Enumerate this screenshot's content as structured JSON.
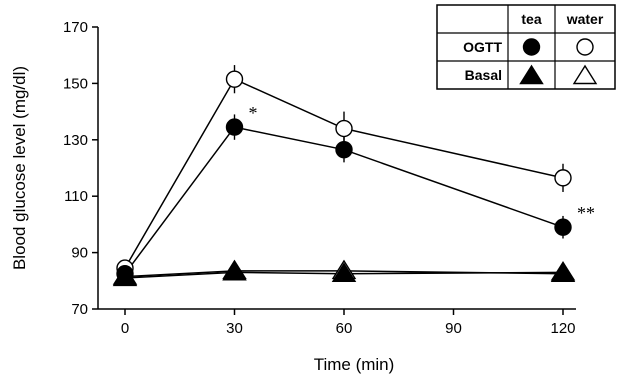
{
  "chart_data": {
    "type": "line",
    "title": "",
    "xlabel": "Time (min)",
    "ylabel": "Blood glucose level  (mg/dl)",
    "xlim": [
      0,
      120
    ],
    "ylim": [
      70,
      170
    ],
    "x_ticks": [
      0,
      30,
      60,
      90,
      120
    ],
    "y_ticks": [
      70,
      90,
      110,
      130,
      150,
      170
    ],
    "grid": false,
    "legend": {
      "placement": "top-right",
      "columns": [
        "tea",
        "water"
      ],
      "rows": [
        "OGTT",
        "Basal"
      ]
    },
    "series": [
      {
        "id": "ogtt_water",
        "x": [
          0,
          30,
          60,
          120
        ],
        "y": [
          84.5,
          151.5,
          134,
          116.5
        ],
        "err": [
          1.5,
          5,
          6,
          5
        ],
        "marker": "circle",
        "filled": false
      },
      {
        "id": "ogtt_tea",
        "x": [
          0,
          30,
          60,
          120
        ],
        "y": [
          82.5,
          134.5,
          126.5,
          99
        ],
        "err": [
          1.5,
          4.5,
          4.5,
          4
        ],
        "marker": "circle",
        "filled": true
      },
      {
        "id": "basal_water",
        "x": [
          0,
          30,
          60,
          120
        ],
        "y": [
          81.5,
          83.5,
          83.5,
          82.5
        ],
        "err": [
          0.5,
          0.5,
          0.5,
          0.5
        ],
        "marker": "triangle",
        "filled": false
      },
      {
        "id": "basal_tea",
        "x": [
          0,
          30,
          60,
          120
        ],
        "y": [
          81,
          83,
          82.5,
          83
        ],
        "err": [
          0.5,
          0.5,
          0.5,
          0.5
        ],
        "marker": "triangle",
        "filled": true
      }
    ],
    "annotations": [
      {
        "text": "*",
        "x": 30,
        "y": 134.5
      },
      {
        "text": "**",
        "x": 120,
        "y": 99
      }
    ]
  }
}
